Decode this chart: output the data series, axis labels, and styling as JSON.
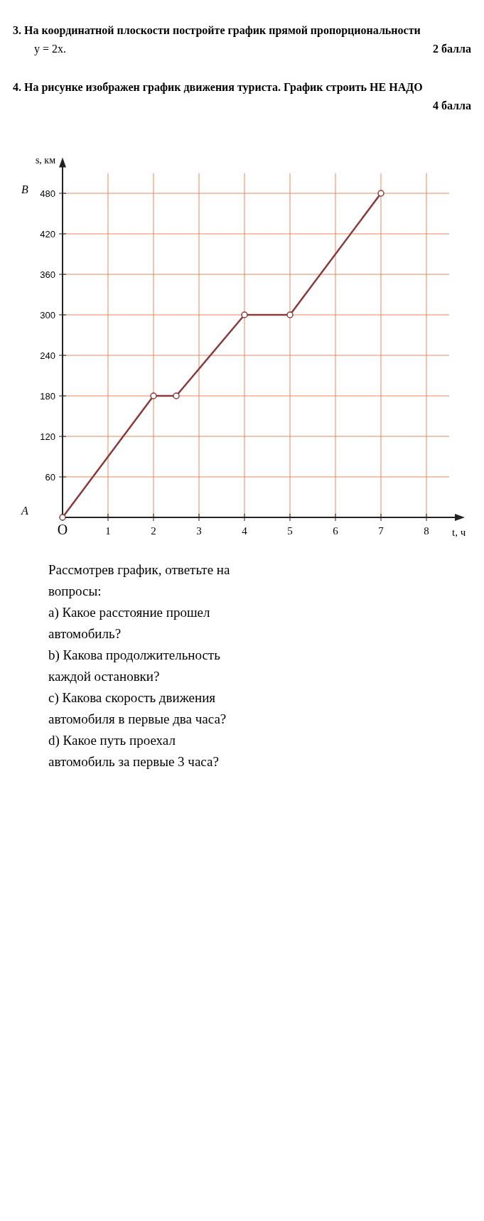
{
  "chart_data": {
    "type": "line",
    "title": "4. На рисунке изображен график движения туриста. График строить НЕ НАДО",
    "xlabel": "t, ч",
    "ylabel": "s, км",
    "x": [
      0,
      2,
      2.5,
      4,
      5,
      7
    ],
    "series": [
      {
        "color": "#8b3a3a",
        "values": [
          0,
          180,
          180,
          300,
          300,
          480
        ]
      }
    ],
    "xlim": [
      0,
      8.5
    ],
    "ylim": [
      0,
      510
    ],
    "xticks": [
      {
        "value": 0,
        "label": "O"
      },
      1,
      2,
      3,
      4,
      5,
      6,
      7,
      8
    ],
    "yticks": [
      60,
      120,
      180,
      240,
      300,
      360,
      420,
      480
    ],
    "grid": true,
    "marker": "circle",
    "line_style": "solid",
    "annotations": [
      "A",
      "B",
      "3. На координатной плоскости постройте график прямой пропорциональности",
      "y = 2x.",
      "2 балла",
      "4 балла",
      "Рассмотрев график, ответьте на",
      "вопросы:",
      "a) Какое расстояние прошел",
      "автомобиль?",
      "b) Какова продолжительность",
      "каждой остановки?",
      "c) Какова скорость движения",
      "автомобиля  в первые два часа?",
      "d) Какое путь проехал",
      "автомобиль за первые 3 часа?"
    ]
  }
}
